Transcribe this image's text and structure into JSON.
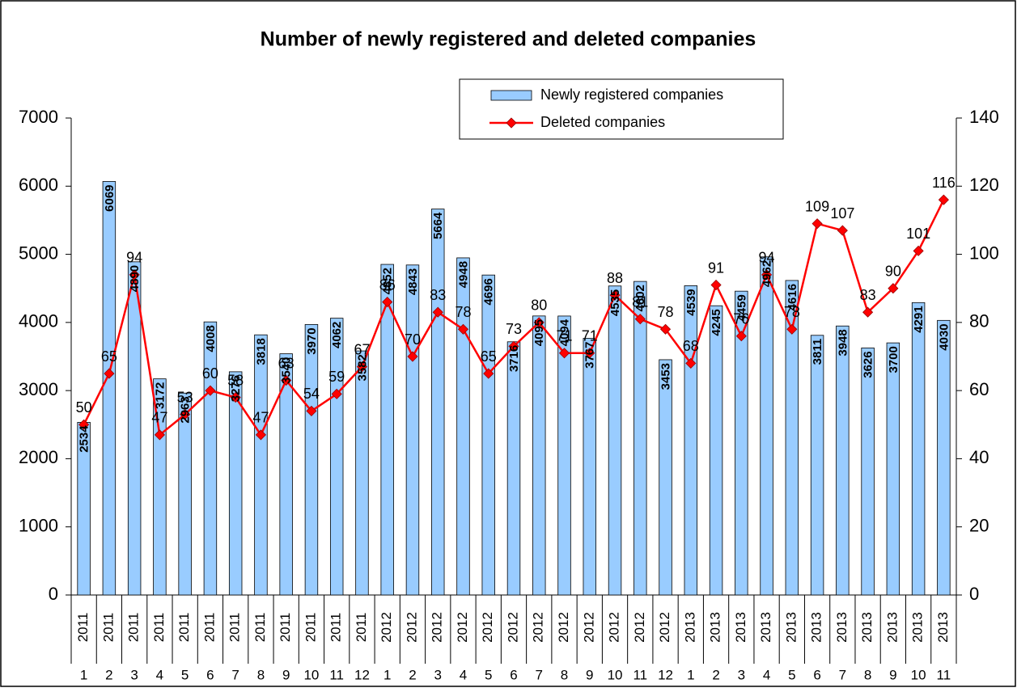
{
  "chart_data": {
    "type": "bar_line",
    "title": "Number of newly registered and deleted companies",
    "categories": [
      {
        "year": "2011",
        "month": "1"
      },
      {
        "year": "2011",
        "month": "2"
      },
      {
        "year": "2011",
        "month": "3"
      },
      {
        "year": "2011",
        "month": "4"
      },
      {
        "year": "2011",
        "month": "5"
      },
      {
        "year": "2011",
        "month": "6"
      },
      {
        "year": "2011",
        "month": "7"
      },
      {
        "year": "2011",
        "month": "8"
      },
      {
        "year": "2011",
        "month": "9"
      },
      {
        "year": "2011",
        "month": "10"
      },
      {
        "year": "2011",
        "month": "11"
      },
      {
        "year": "2011",
        "month": "12"
      },
      {
        "year": "2012",
        "month": "1"
      },
      {
        "year": "2012",
        "month": "2"
      },
      {
        "year": "2012",
        "month": "3"
      },
      {
        "year": "2012",
        "month": "4"
      },
      {
        "year": "2012",
        "month": "5"
      },
      {
        "year": "2012",
        "month": "6"
      },
      {
        "year": "2012",
        "month": "7"
      },
      {
        "year": "2012",
        "month": "8"
      },
      {
        "year": "2012",
        "month": "9"
      },
      {
        "year": "2012",
        "month": "10"
      },
      {
        "year": "2012",
        "month": "11"
      },
      {
        "year": "2012",
        "month": "12"
      },
      {
        "year": "2013",
        "month": "1"
      },
      {
        "year": "2013",
        "month": "2"
      },
      {
        "year": "2013",
        "month": "3"
      },
      {
        "year": "2013",
        "month": "4"
      },
      {
        "year": "2013",
        "month": "5"
      },
      {
        "year": "2013",
        "month": "6"
      },
      {
        "year": "2013",
        "month": "7"
      },
      {
        "year": "2013",
        "month": "8"
      },
      {
        "year": "2013",
        "month": "9"
      },
      {
        "year": "2013",
        "month": "10"
      },
      {
        "year": "2013",
        "month": "11"
      }
    ],
    "series": [
      {
        "name": "Newly registered companies",
        "type": "bar",
        "color": "#99ccff",
        "values": [
          2534,
          6069,
          4890,
          3172,
          2963,
          4008,
          3276,
          3818,
          3540,
          3970,
          4062,
          3582,
          4852,
          4843,
          5664,
          4948,
          4696,
          3716,
          4095,
          4094,
          3767,
          4535,
          4602,
          3453,
          4539,
          4245,
          4459,
          4962,
          4616,
          3811,
          3948,
          3626,
          3700,
          4291,
          4030
        ]
      },
      {
        "name": "Deleted companies",
        "type": "line",
        "color": "#ff0000",
        "axis": "y2",
        "values": [
          50,
          65,
          94,
          47,
          53,
          60,
          58,
          47,
          63,
          54,
          59,
          67,
          86,
          70,
          83,
          78,
          65,
          73,
          80,
          71,
          71,
          88,
          81,
          78,
          68,
          91,
          76,
          94,
          78,
          109,
          107,
          83,
          90,
          101,
          116
        ]
      }
    ],
    "ylim": [
      0,
      7000
    ],
    "yticks": [
      0,
      1000,
      2000,
      3000,
      4000,
      5000,
      6000,
      7000
    ],
    "y2lim": [
      0,
      140
    ],
    "y2ticks": [
      0,
      20,
      40,
      60,
      80,
      100,
      120,
      140
    ],
    "grid": false
  }
}
